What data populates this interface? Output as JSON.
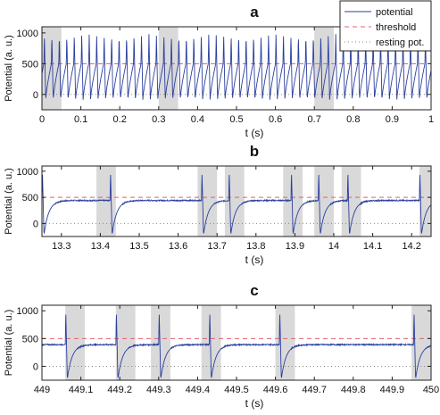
{
  "legend": {
    "placement": "top-right of panel a",
    "entries": [
      {
        "label": "potential",
        "color": "#2b3f9e",
        "style": "solid"
      },
      {
        "label": "threshold",
        "color": "#e06070",
        "style": "dashed"
      },
      {
        "label": "resting pot.",
        "color": "#888888",
        "style": "dotted"
      }
    ]
  },
  "colors": {
    "potential": "#2b3f9e",
    "threshold": "#e06070",
    "resting": "#888888",
    "highlight": "#d9d9d9"
  },
  "chart_data": [
    {
      "type": "line",
      "title": "a",
      "xlabel": "t (s)",
      "ylabel": "Potential (a. u.)",
      "xlim": [
        0,
        1
      ],
      "ylim": [
        -250,
        1100
      ],
      "xticks": [
        0,
        0.1,
        0.2,
        0.3,
        0.4,
        0.5,
        0.6,
        0.7,
        0.8,
        0.9,
        1
      ],
      "xtick_labels": [
        "0",
        "0.1",
        "0.2",
        "0.3",
        "0.4",
        "0.5",
        "0.6",
        "0.7",
        "0.8",
        "0.9",
        "1"
      ],
      "yticks": [
        0,
        500,
        1000
      ],
      "ytick_labels": [
        "0",
        "500",
        "1000"
      ],
      "threshold": 500,
      "resting": 0,
      "highlight_intervals": [
        [
          0.0,
          0.05
        ],
        [
          0.3,
          0.35
        ],
        [
          0.7,
          0.75
        ]
      ],
      "series": [
        {
          "name": "potential",
          "kind": "periodic_spikes",
          "period": 0.0192,
          "first_spike": 0.005,
          "peak": 980,
          "trough": -90,
          "plateau": 500
        }
      ]
    },
    {
      "type": "line",
      "title": "b",
      "xlabel": "t (s)",
      "ylabel": "Potential (a. u.)",
      "xlim": [
        13.25,
        14.25
      ],
      "ylim": [
        -250,
        1100
      ],
      "xticks": [
        13.3,
        13.4,
        13.5,
        13.6,
        13.7,
        13.8,
        13.9,
        14,
        14.1,
        14.2
      ],
      "xtick_labels": [
        "13.3",
        "13.4",
        "13.5",
        "13.6",
        "13.7",
        "13.8",
        "13.9",
        "14",
        "14.1",
        "14.2"
      ],
      "yticks": [
        0,
        500,
        1000
      ],
      "ytick_labels": [
        "0",
        "500",
        "1000"
      ],
      "threshold": 500,
      "resting": 0,
      "highlight_intervals": [
        [
          13.39,
          13.44
        ],
        [
          13.65,
          13.7
        ],
        [
          13.72,
          13.77
        ],
        [
          13.87,
          13.92
        ],
        [
          13.95,
          14.0
        ],
        [
          14.02,
          14.07
        ],
        [
          14.22,
          14.25
        ]
      ],
      "series": [
        {
          "name": "potential",
          "kind": "sparse_spikes",
          "spike_times": [
            13.25,
            13.425,
            13.66,
            13.73,
            13.89,
            13.96,
            14.035,
            14.22
          ],
          "peak": 1000,
          "trough": -220,
          "plateau": 440
        }
      ]
    },
    {
      "type": "line",
      "title": "c",
      "xlabel": "t (s)",
      "ylabel": "Potential (a. u.)",
      "xlim": [
        449,
        450
      ],
      "ylim": [
        -250,
        1100
      ],
      "xticks": [
        449,
        449.1,
        449.2,
        449.3,
        449.4,
        449.5,
        449.6,
        449.7,
        449.8,
        449.9,
        450
      ],
      "xtick_labels": [
        "449",
        "449.1",
        "449.2",
        "449.3",
        "449.4",
        "449.5",
        "449.6",
        "449.7",
        "449.8",
        "449.9",
        "450"
      ],
      "yticks": [
        0,
        500,
        1000
      ],
      "ytick_labels": [
        "0",
        "500",
        "1000"
      ],
      "threshold": 500,
      "resting": 0,
      "highlight_intervals": [
        [
          449.06,
          449.11
        ],
        [
          449.19,
          449.24
        ],
        [
          449.28,
          449.33
        ],
        [
          449.41,
          449.46
        ],
        [
          449.6,
          449.65
        ],
        [
          449.95,
          450.0
        ]
      ],
      "series": [
        {
          "name": "potential",
          "kind": "sparse_spikes",
          "spike_times": [
            449.06,
            449.19,
            449.3,
            449.43,
            449.61,
            449.955
          ],
          "peak": 1000,
          "trough": -230,
          "plateau": 390
        }
      ]
    }
  ]
}
